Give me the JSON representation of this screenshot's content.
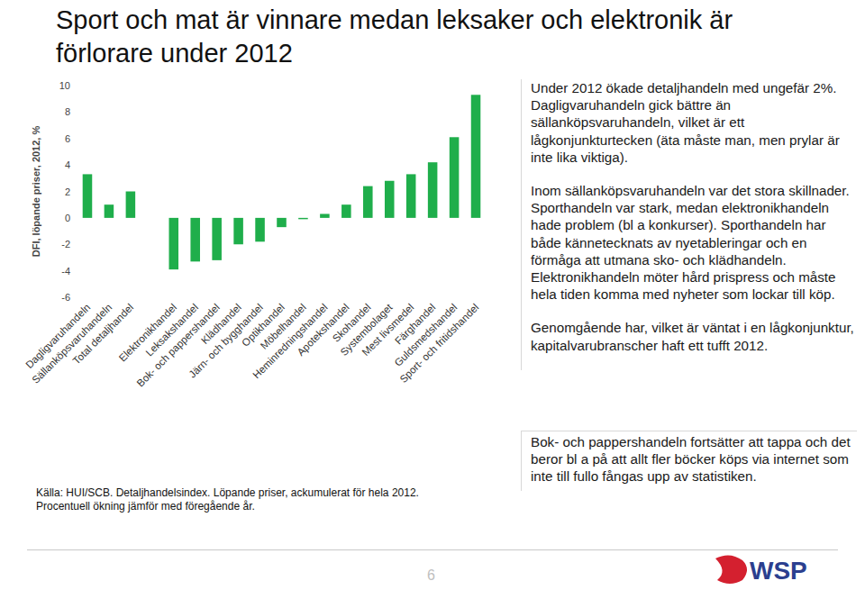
{
  "title": [
    "Sport och mat är vinnare medan leksaker och elektronik är",
    "förlorare under 2012"
  ],
  "chart_data": {
    "type": "bar",
    "ylabel": "DFI, löpande priser, 2012, %",
    "categories": [
      "Dagligvaruhandeln",
      "Sällanköpsvaruhandeln",
      "Total detaljhandel",
      null,
      "Elektronikhandel",
      "Leksakshandel",
      "Bok- och pappershandel",
      "Klädhandel",
      "Järn- och bygghandel",
      "Optikhandel",
      "Möbelhandel",
      "Heminredningshandel",
      "Apotekshandel",
      "Skohandel",
      "Systembolaget",
      "Mest livsmedel",
      "Färghandel",
      "Guldsmedshandel",
      "Sport- och fritidshandel"
    ],
    "values": [
      3.3,
      1.0,
      2.0,
      null,
      -3.9,
      -3.3,
      -3.2,
      -2.0,
      -1.8,
      -0.7,
      -0.1,
      0.3,
      1.0,
      2.4,
      2.8,
      3.3,
      4.2,
      6.1,
      9.3
    ],
    "color": "#1fae4b",
    "ylim": [
      -6,
      10
    ],
    "yticks": [
      -6,
      -4,
      -2,
      0,
      2,
      4,
      6,
      8,
      10
    ],
    "grid": false
  },
  "body": [
    "Under 2012 ökade detaljhandeln med ungefär 2%. Dagligvaruhandeln gick bättre än sällanköpsvaruhandeln, vilket är ett lågkonjunkturtecken (äta måste man, men prylar är inte lika viktiga).",
    "Inom sällanköpsvaruhandeln var det stora skillnader. Sporthandeln var stark, medan elektronikhandeln hade problem (bl a konkurser). Sporthandeln har både kännetecknats av nyetableringar och en förmåga att  utmana sko- och klädhandeln. Elektronikhandeln möter hård prispress och måste hela tiden komma med nyheter som lockar till köp.",
    "Genomgående har, vilket är väntat i en lågkonjunktur, kapitalvarubranscher haft ett tufft 2012."
  ],
  "callout": "Bok- och pappershandeln fortsätter att tappa och det beror bl a på att allt fler böcker köps via internet som inte till fullo fångas upp av statistiken.",
  "source": [
    "Källa: HUI/SCB. Detaljhandelsindex. Löpande priser, ackumulerat för hela 2012.",
    "Procentuell ökning jämför med föregående år."
  ],
  "page_number": "6",
  "logo": "WSP"
}
